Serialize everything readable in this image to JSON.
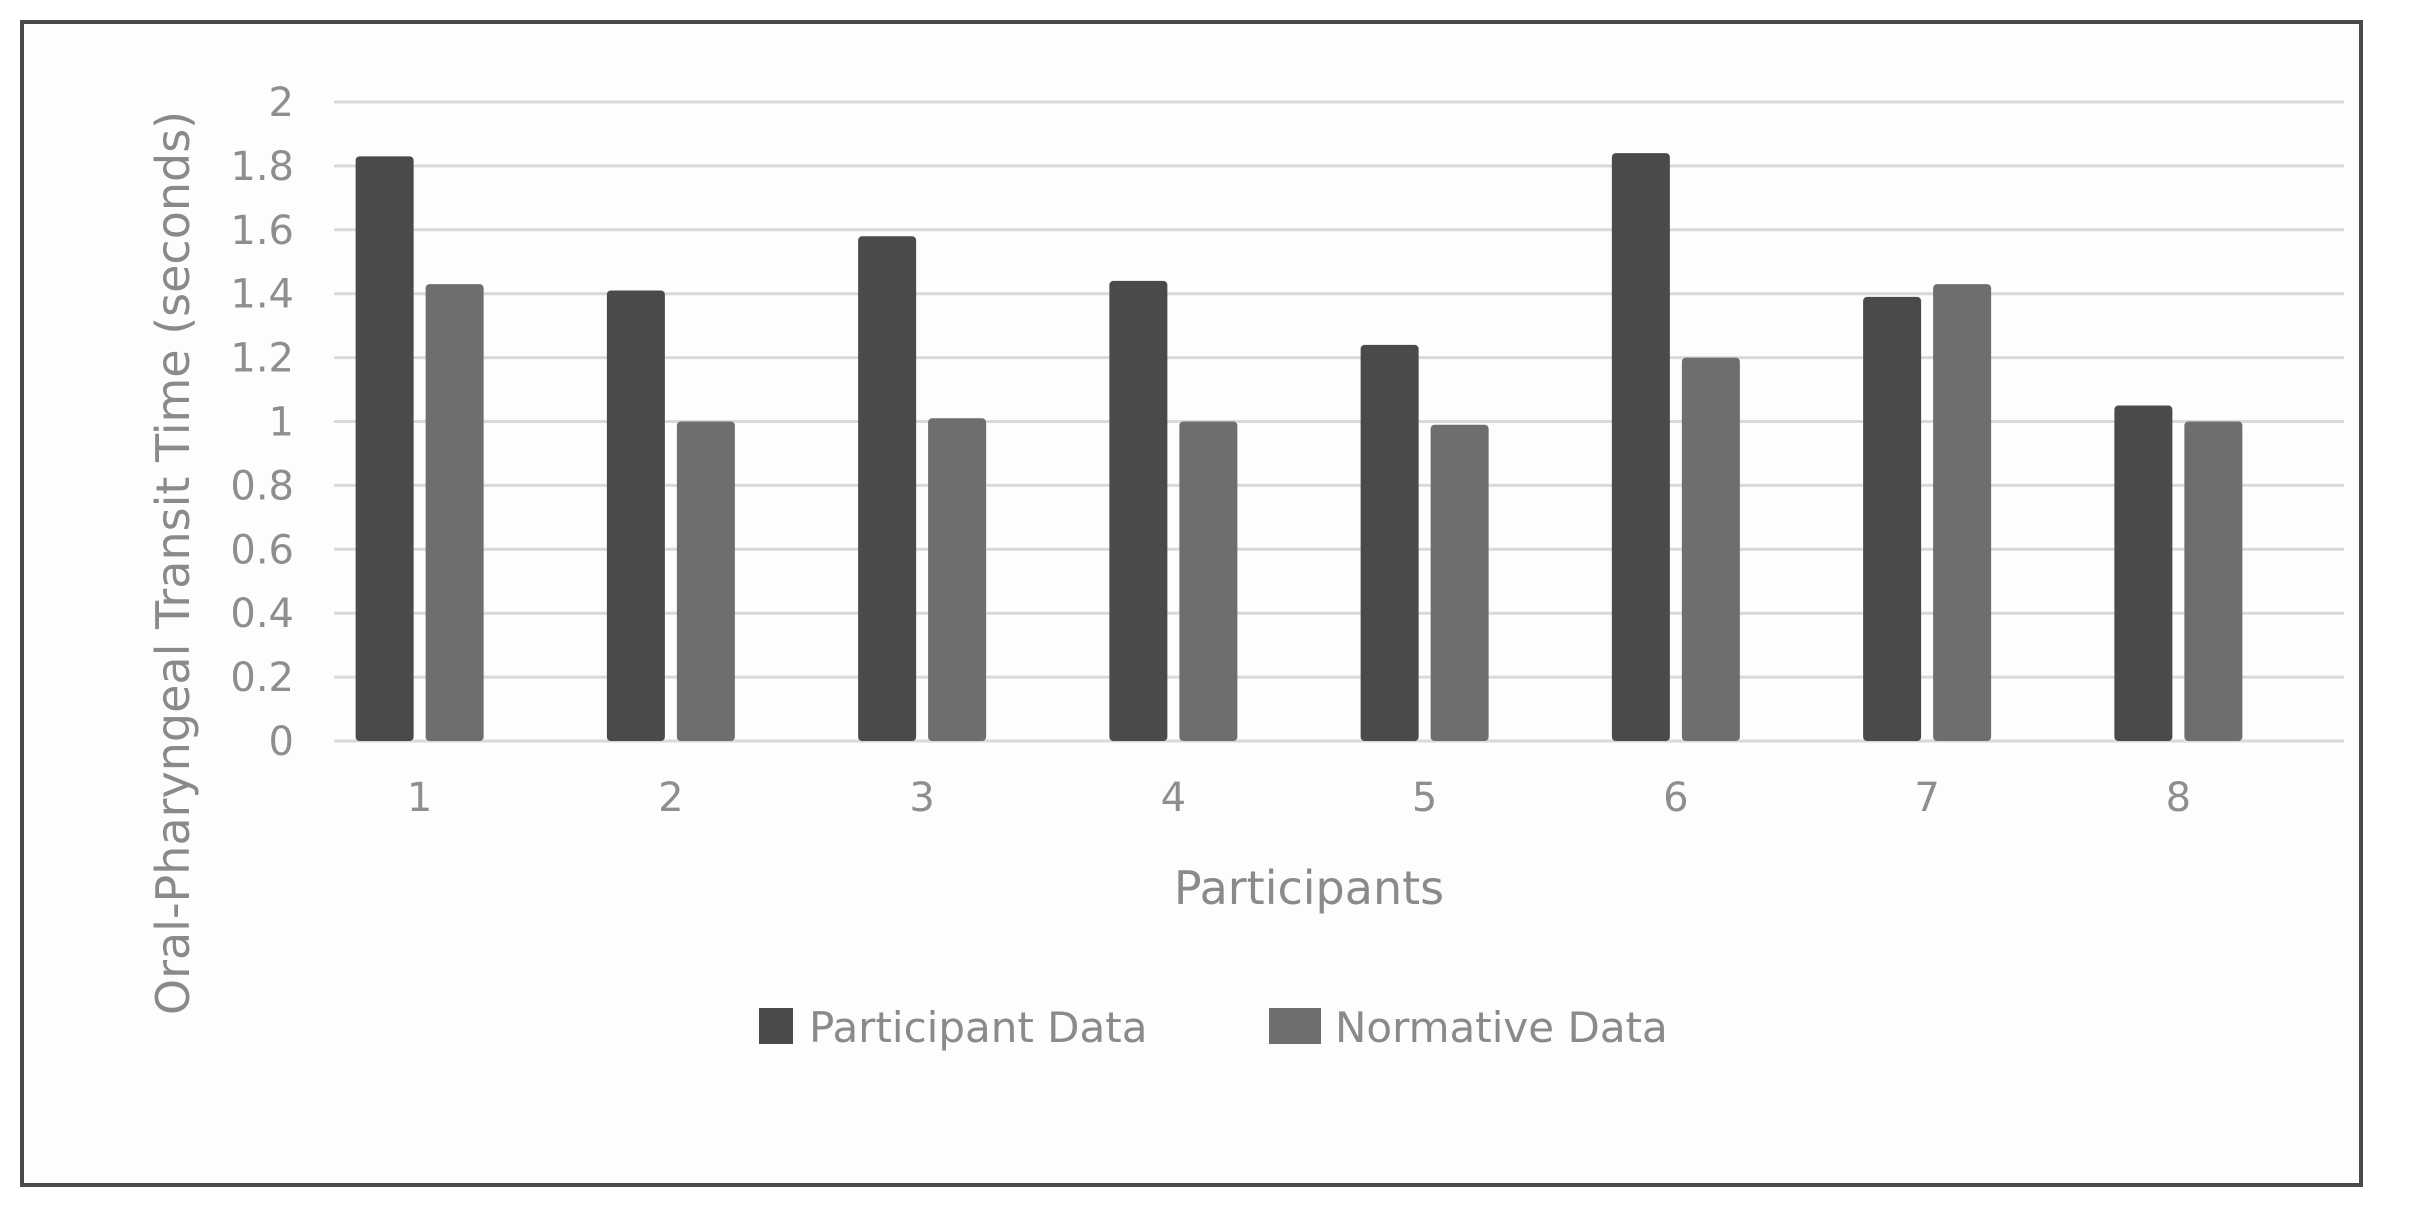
{
  "chart_data": {
    "type": "bar",
    "categories": [
      "1",
      "2",
      "3",
      "4",
      "5",
      "6",
      "7",
      "8"
    ],
    "series": [
      {
        "name": "Participant Data",
        "values": [
          1.83,
          1.41,
          1.58,
          1.44,
          1.24,
          1.84,
          1.39,
          1.05
        ],
        "color": "#4a4a4a"
      },
      {
        "name": "Normative Data",
        "values": [
          1.43,
          1.0,
          1.01,
          1.0,
          0.99,
          1.2,
          1.43,
          1.0
        ],
        "color": "#6e6e6e"
      }
    ],
    "xlabel": "Participants",
    "ylabel": "Oral-Pharyngeal Transit Time (seconds)",
    "ylim": [
      0,
      2
    ],
    "yticks": [
      "0",
      "0.2",
      "0.4",
      "0.6",
      "0.8",
      "1",
      "1.2",
      "1.4",
      "1.6",
      "1.8",
      "2"
    ],
    "grid": true,
    "legend_position": "bottom"
  }
}
